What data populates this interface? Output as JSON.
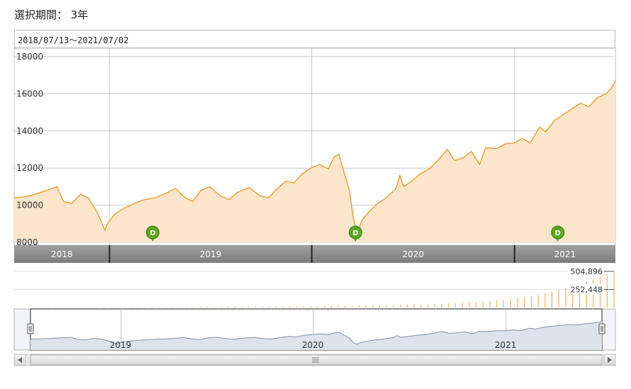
{
  "header": {
    "period_label": "選択期間： 3年",
    "range_text": "2018/07/13～2021/07/02"
  },
  "colors": {
    "line": "#f09a30",
    "fill": "#fbe6cc",
    "axis_bar": "#8c8c8c",
    "volume": "#f0a040",
    "nav_line": "#8090a8",
    "nav_fill": "#dde3ea",
    "marker": "#5aa81e",
    "grid": "#c8c8c8"
  },
  "icons": {
    "dividend_marker": "dividend-marker-icon",
    "scroll_left": "arrow-left-icon",
    "scroll_right": "arrow-right-icon",
    "scroll_grip": "grip-icon",
    "nav_handle": "handle-icon"
  },
  "chart_data": [
    {
      "type": "area",
      "yticks": [
        "18000",
        "16000",
        "14000",
        "12000",
        "10000",
        "8000"
      ],
      "ylim": [
        8000,
        18000
      ],
      "xlim": [
        "2018-07-13",
        "2021-07-02"
      ],
      "year_labels": [
        "2018",
        "2019",
        "2020",
        "2021"
      ],
      "year_boundaries": [
        "2019-01-01",
        "2020-01-01",
        "2021-01-01"
      ],
      "markers": [
        {
          "label": "D",
          "date": "2019-03-20"
        },
        {
          "label": "D",
          "date": "2020-03-20"
        },
        {
          "label": "D",
          "date": "2021-03-20"
        }
      ],
      "series": [
        {
          "x": [
            "2018-07-13",
            "2018-08-01",
            "2018-08-20",
            "2018-09-10",
            "2018-09-28",
            "2018-10-10",
            "2018-10-25",
            "2018-11-10",
            "2018-11-25",
            "2018-12-10",
            "2018-12-24",
            "2018-12-28",
            "2019-01-10",
            "2019-01-25",
            "2019-02-15",
            "2019-03-05",
            "2019-03-25",
            "2019-04-10",
            "2019-04-30",
            "2019-05-15",
            "2019-05-31",
            "2019-06-15",
            "2019-07-01",
            "2019-07-20",
            "2019-08-05",
            "2019-08-20",
            "2019-09-10",
            "2019-09-30",
            "2019-10-15",
            "2019-10-31",
            "2019-11-15",
            "2019-11-30",
            "2019-12-15",
            "2019-12-31",
            "2020-01-15",
            "2020-01-31",
            "2020-02-10",
            "2020-02-19",
            "2020-02-28",
            "2020-03-09",
            "2020-03-16",
            "2020-03-23",
            "2020-04-01",
            "2020-04-15",
            "2020-04-29",
            "2020-05-15",
            "2020-06-01",
            "2020-06-08",
            "2020-06-15",
            "2020-06-30",
            "2020-07-15",
            "2020-07-31",
            "2020-08-15",
            "2020-09-02",
            "2020-09-15",
            "2020-09-30",
            "2020-10-15",
            "2020-10-30",
            "2020-11-10",
            "2020-11-30",
            "2020-12-15",
            "2020-12-31",
            "2021-01-15",
            "2021-01-29",
            "2021-02-15",
            "2021-02-26",
            "2021-03-15",
            "2021-03-31",
            "2021-04-15",
            "2021-04-30",
            "2021-05-15",
            "2021-05-31",
            "2021-06-15",
            "2021-06-25",
            "2021-07-02"
          ],
          "y": [
            10400,
            10450,
            10600,
            10800,
            11000,
            10200,
            10100,
            10600,
            10350,
            9600,
            8650,
            9000,
            9500,
            9800,
            10100,
            10300,
            10400,
            10600,
            10900,
            10450,
            10200,
            10800,
            11000,
            10500,
            10300,
            10700,
            10950,
            10500,
            10400,
            10900,
            11300,
            11200,
            11700,
            12000,
            12200,
            11950,
            12600,
            12750,
            11800,
            10800,
            9300,
            8550,
            9200,
            9700,
            10100,
            10400,
            10900,
            11600,
            11000,
            11300,
            11700,
            11950,
            12400,
            13000,
            12400,
            12550,
            12900,
            12200,
            13100,
            13050,
            13300,
            13350,
            13600,
            13350,
            14200,
            13950,
            14600,
            14900,
            15200,
            15500,
            15300,
            15800,
            16000,
            16300,
            16700
          ]
        }
      ]
    },
    {
      "type": "bar",
      "yticks": [
        "504,896",
        "252,448"
      ],
      "ylim": [
        0,
        504896
      ],
      "values": [
        3000,
        3000,
        4000,
        4000,
        4000,
        5000,
        5000,
        5000,
        5000,
        6000,
        6000,
        6000,
        6000,
        7000,
        7000,
        7000,
        8000,
        8000,
        8000,
        9000,
        9000,
        9000,
        10000,
        10000,
        10000,
        11000,
        11000,
        12000,
        12000,
        12000,
        13000,
        13000,
        14000,
        14000,
        15000,
        15000,
        16000,
        16000,
        17000,
        18000,
        18000,
        19000,
        20000,
        21000,
        22000,
        23000,
        24000,
        25000,
        26000,
        27000,
        29000,
        30000,
        32000,
        34000,
        36000,
        38000,
        40000,
        42000,
        45000,
        47000,
        50000,
        53000,
        57000,
        61000,
        65000,
        70000,
        76000,
        82000,
        90000,
        98000,
        108000,
        118000,
        130000,
        145000,
        160000,
        178000,
        198000,
        220000,
        245000,
        270000,
        300000,
        330000,
        360000,
        395000,
        430000,
        465000,
        504896
      ]
    },
    {
      "type": "area",
      "year_labels": [
        "2019",
        "2020",
        "2021"
      ]
    }
  ]
}
